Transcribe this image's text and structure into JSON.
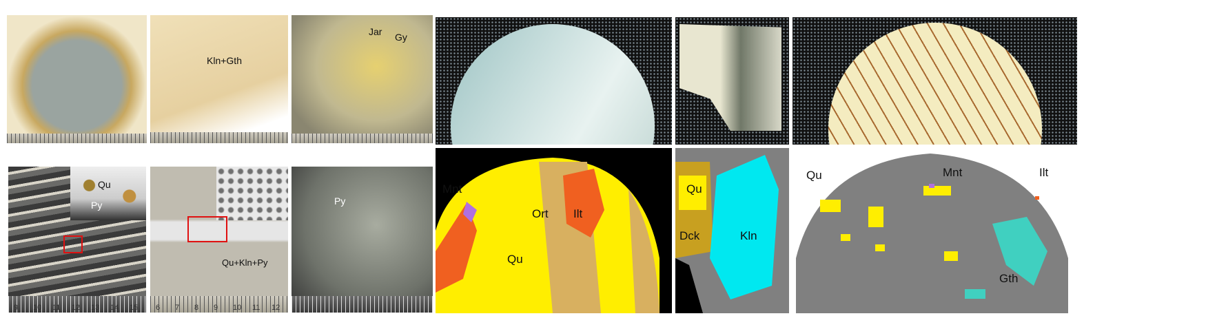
{
  "photos_top": [
    {
      "labels": []
    },
    {
      "labels": [
        "Kln+Gth"
      ]
    },
    {
      "labels": [
        "Jar",
        "Gy"
      ]
    }
  ],
  "photos_bottom": [
    {
      "labels": [
        "Qu",
        "Py"
      ],
      "ruler_ticks": [
        "9",
        "10",
        "11",
        "12",
        "13",
        "14",
        "15"
      ]
    },
    {
      "labels": [
        "Qu+Kln+Py"
      ],
      "ruler_ticks": [
        "6",
        "7",
        "8",
        "9",
        "10",
        "11",
        "12"
      ]
    },
    {
      "labels": [
        "Py"
      ]
    }
  ],
  "mineral_maps": [
    {
      "labels": [
        "Mnt",
        "Ort",
        "Ilt",
        "Qu"
      ]
    },
    {
      "labels": [
        "Qu",
        "Dck",
        "Kln"
      ]
    },
    {
      "labels": [
        "Qu",
        "Mnt",
        "Ilt",
        "Gth"
      ]
    }
  ],
  "colors": {
    "Qu": "#ffee00",
    "Ilt": "#f06020",
    "Mnt": "#b070e0",
    "Ort": "#d8b060",
    "Kln": "#00e8f0",
    "Dck": "#c8a020",
    "Gth": "#40d0c0",
    "background": "#808080",
    "mask": "#000000"
  }
}
